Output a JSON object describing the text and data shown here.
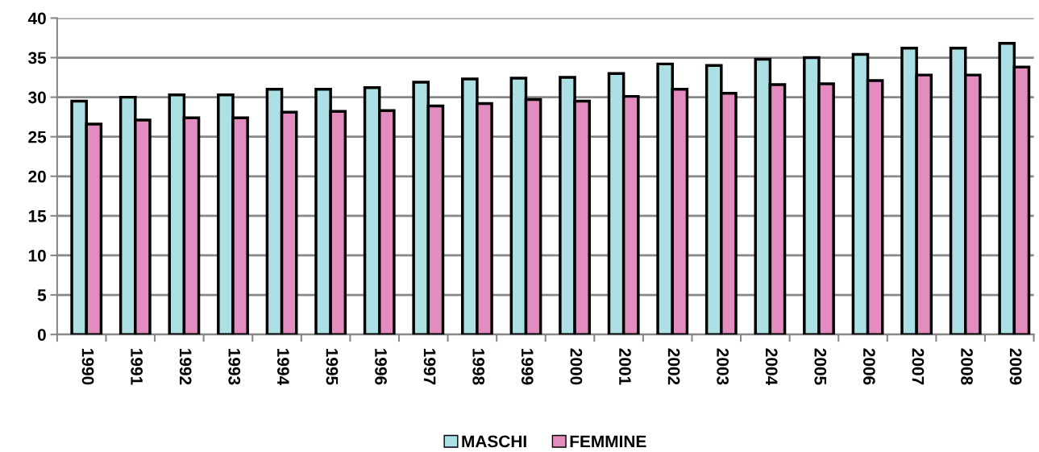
{
  "chart_data": {
    "type": "bar",
    "categories": [
      "1990",
      "1991",
      "1992",
      "1993",
      "1994",
      "1995",
      "1996",
      "1997",
      "1998",
      "1999",
      "2000",
      "2001",
      "2002",
      "2003",
      "2004",
      "2005",
      "2006",
      "2007",
      "2008",
      "2009"
    ],
    "series": [
      {
        "name": "MASCHI",
        "color": "#ace0e4",
        "values": [
          29.5,
          30.0,
          30.3,
          30.3,
          31.0,
          31.0,
          31.2,
          31.9,
          32.3,
          32.4,
          32.5,
          33.0,
          34.2,
          34.0,
          34.8,
          35.0,
          35.4,
          36.2,
          36.2,
          36.8
        ]
      },
      {
        "name": "FEMMINE",
        "color": "#e28cc0",
        "values": [
          26.6,
          27.1,
          27.4,
          27.4,
          28.1,
          28.2,
          28.3,
          28.9,
          29.2,
          29.7,
          29.5,
          30.1,
          31.0,
          30.5,
          31.6,
          31.7,
          32.1,
          32.8,
          32.8,
          33.8
        ]
      }
    ],
    "ylim": [
      0,
      40
    ],
    "yticks": [
      0,
      5,
      10,
      15,
      20,
      25,
      30,
      35,
      40
    ],
    "grid": "y",
    "legend": "bottom"
  }
}
